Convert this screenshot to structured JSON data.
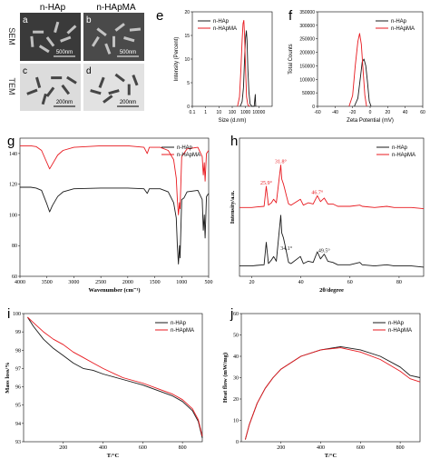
{
  "colors": {
    "hap": "#1a1a1a",
    "hapma": "#e8191f"
  },
  "micro": {
    "col_labels": [
      "n-HAp",
      "n-HApMA"
    ],
    "row_labels": [
      "SEM",
      "TEM"
    ],
    "panels": [
      {
        "letter": "a",
        "scale": "500nm"
      },
      {
        "letter": "b",
        "scale": "500nm"
      },
      {
        "letter": "c",
        "scale": "200nm"
      },
      {
        "letter": "d",
        "scale": "200nm"
      }
    ]
  },
  "chart_data": [
    {
      "panel": "e",
      "type": "line",
      "xlabel": "Size (d.nm)",
      "ylabel": "Intensity (Percent)",
      "xscale": "log",
      "xlim": [
        0.1,
        100000
      ],
      "ylim": [
        0,
        20
      ],
      "xticks": [
        "0.1",
        "1",
        "10",
        "100",
        "1000",
        "10000"
      ],
      "yticks": [
        "0",
        "5",
        "10",
        "15",
        "20"
      ],
      "legend": [
        "n-HAp",
        "n-HApMA"
      ],
      "legend_position": "top-left",
      "series": [
        {
          "name": "n-HAp",
          "x": [
            400,
            550,
            700,
            850,
            1000,
            1150,
            1300,
            1500,
            1800,
            2200,
            3000,
            4500,
            5000,
            5400,
            5800
          ],
          "y": [
            0,
            1,
            4,
            10,
            14.5,
            16,
            14,
            8,
            3,
            0.5,
            0,
            0,
            1.5,
            2.5,
            0
          ]
        },
        {
          "name": "n-HApMA",
          "x": [
            250,
            350,
            450,
            550,
            650,
            750,
            850,
            1000,
            1200,
            1500,
            2000
          ],
          "y": [
            0,
            2,
            8,
            14,
            17.5,
            18.2,
            15,
            8,
            2,
            0.3,
            0
          ]
        }
      ]
    },
    {
      "panel": "f",
      "type": "line",
      "xlabel": "Zeta Potential (mV)",
      "ylabel": "Total Counts",
      "xlim": [
        -60,
        60
      ],
      "ylim": [
        0,
        350000
      ],
      "xticks": [
        "-60",
        "-40",
        "-20",
        "0",
        "20",
        "40",
        "60"
      ],
      "yticks": [
        "0",
        "50000",
        "100000",
        "150000",
        "200000",
        "250000",
        "300000",
        "350000"
      ],
      "legend": [
        "n-HAp",
        "n-HApMA"
      ],
      "legend_position": "top-right",
      "series": [
        {
          "name": "n-HAp",
          "x": [
            -18,
            -14,
            -11,
            -9,
            -7,
            -5,
            -3,
            -1,
            1
          ],
          "y": [
            0,
            30000,
            110000,
            165000,
            175000,
            150000,
            90000,
            20000,
            0
          ]
        },
        {
          "name": "n-HApMA",
          "x": [
            -24,
            -20,
            -17,
            -14,
            -12,
            -10,
            -8,
            -6,
            -4
          ],
          "y": [
            0,
            40000,
            150000,
            240000,
            270000,
            230000,
            130000,
            40000,
            0
          ]
        }
      ]
    },
    {
      "panel": "g",
      "type": "line",
      "xlabel": "Wavenumber (cm⁻¹)",
      "xlim": [
        4000,
        500
      ],
      "ylim": [
        60,
        150
      ],
      "xticks": [
        "4000",
        "3500",
        "3000",
        "2500",
        "2000",
        "1500",
        "1000",
        "500"
      ],
      "yticks": [
        "60",
        "80",
        "100",
        "120",
        "140"
      ],
      "legend": [
        "n-HAp",
        "n-HApMA"
      ],
      "legend_position": "top-right",
      "series": [
        {
          "name": "n-HAp",
          "x": [
            4000,
            3800,
            3700,
            3600,
            3500,
            3450,
            3400,
            3300,
            3200,
            3000,
            2500,
            2000,
            1700,
            1640,
            1600,
            1400,
            1250,
            1150,
            1100,
            1080,
            1060,
            1040,
            1030,
            1000,
            960,
            900,
            700,
            620,
            600,
            580,
            565,
            540,
            500
          ],
          "y": [
            118,
            118,
            117.5,
            116,
            107,
            102,
            106,
            112,
            115,
            117,
            117.5,
            117.5,
            117,
            114,
            117,
            117,
            115,
            108,
            98,
            80,
            68,
            80,
            72,
            110,
            111,
            115,
            116,
            110,
            90,
            100,
            85,
            112,
            114
          ]
        },
        {
          "name": "n-HApMA",
          "x": [
            4000,
            3800,
            3700,
            3600,
            3500,
            3450,
            3400,
            3300,
            3200,
            3000,
            2500,
            2000,
            1700,
            1640,
            1600,
            1400,
            1250,
            1150,
            1100,
            1080,
            1060,
            1040,
            1030,
            1000,
            960,
            900,
            700,
            620,
            600,
            580,
            565,
            540,
            500
          ],
          "y": [
            145,
            145,
            144.5,
            142,
            134,
            130,
            133,
            139,
            142,
            144,
            145,
            145,
            144,
            140,
            144,
            144,
            142,
            136,
            124,
            110,
            100,
            108,
            104,
            138,
            140,
            143,
            144,
            138,
            126,
            134,
            122,
            140,
            142
          ]
        }
      ]
    },
    {
      "panel": "h",
      "type": "line",
      "xlabel": "2θ/degree",
      "ylabel": "Intensity/a.u.",
      "xlim": [
        15,
        90
      ],
      "xticks": [
        "20",
        "40",
        "60",
        "80"
      ],
      "legend": [
        "n-HAp",
        "n-HApMA"
      ],
      "legend_position": "top-right",
      "annotations": [
        {
          "text": "25.9°",
          "x": 25.9,
          "series": "n-HApMA"
        },
        {
          "text": "31.8°",
          "x": 31.8,
          "series": "n-HApMA"
        },
        {
          "text": "46.7°",
          "x": 46.7,
          "series": "n-HApMA"
        },
        {
          "text": "34.1°",
          "x": 34.1,
          "series": "n-HAp"
        },
        {
          "text": "49.5°",
          "x": 49.5,
          "series": "n-HAp"
        }
      ],
      "series": [
        {
          "name": "n-HAp",
          "x": [
            15,
            20,
            22,
            25,
            25.9,
            26.8,
            28,
            28.9,
            30,
            31.8,
            32.2,
            32.9,
            33.5,
            34.1,
            35,
            36,
            39.8,
            41,
            43,
            45,
            46.7,
            48,
            49.5,
            51,
            53,
            55,
            60,
            64,
            65,
            70,
            75,
            78,
            80,
            85,
            90
          ],
          "y": [
            2,
            2,
            2.5,
            3,
            22,
            4,
            7,
            10,
            6,
            45,
            30,
            26,
            20,
            14,
            5,
            4,
            10,
            4,
            6,
            5,
            14,
            8,
            12,
            6,
            5,
            3,
            3,
            5,
            3,
            2,
            3,
            2,
            2,
            2,
            1
          ]
        },
        {
          "name": "n-HApMA",
          "x": [
            15,
            20,
            22,
            25,
            25.9,
            26.8,
            28,
            28.9,
            30,
            31.8,
            32.2,
            32.9,
            33.5,
            34.1,
            35,
            36,
            39.8,
            41,
            43,
            45,
            46.7,
            48,
            49.5,
            51,
            53,
            55,
            60,
            64,
            65,
            70,
            75,
            78,
            80,
            85,
            90
          ],
          "y": [
            2,
            2,
            2.5,
            3,
            20,
            4,
            6,
            9,
            6,
            38,
            26,
            22,
            17,
            12,
            5,
            4,
            9,
            4,
            6,
            5,
            12,
            7,
            10,
            5,
            5,
            3,
            3,
            4,
            3,
            2,
            3,
            2,
            2,
            2,
            1
          ]
        }
      ]
    },
    {
      "panel": "i",
      "type": "line",
      "xlabel": "T/°C",
      "ylabel": "Mass loss/%",
      "xlim": [
        0,
        900
      ],
      "ylim": [
        93,
        100
      ],
      "xticks": [
        "200",
        "400",
        "600",
        "800"
      ],
      "yticks": [
        "93",
        "94",
        "95",
        "96",
        "97",
        "98",
        "99",
        "100"
      ],
      "legend": [
        "n-HAp",
        "n-HApMA"
      ],
      "legend_position": "top-right",
      "series": [
        {
          "name": "n-HAp",
          "x": [
            20,
            50,
            100,
            150,
            200,
            250,
            300,
            350,
            400,
            500,
            600,
            700,
            750,
            800,
            850,
            880,
            900
          ],
          "y": [
            99.8,
            99.3,
            98.6,
            98.1,
            97.7,
            97.3,
            97.0,
            96.9,
            96.7,
            96.4,
            96.1,
            95.7,
            95.5,
            95.2,
            94.7,
            94.1,
            93.2
          ]
        },
        {
          "name": "n-HApMA",
          "x": [
            20,
            50,
            100,
            150,
            200,
            250,
            300,
            350,
            400,
            500,
            600,
            700,
            750,
            800,
            850,
            880,
            900
          ],
          "y": [
            99.8,
            99.5,
            99.0,
            98.6,
            98.3,
            97.9,
            97.6,
            97.3,
            97.0,
            96.5,
            96.2,
            95.8,
            95.6,
            95.3,
            94.8,
            94.2,
            93.3
          ]
        }
      ]
    },
    {
      "panel": "j",
      "type": "line",
      "xlabel": "T/°C",
      "ylabel": "Heat flow (mW/mg)",
      "xlim": [
        0,
        900
      ],
      "ylim": [
        0,
        60
      ],
      "xticks": [
        "200",
        "400",
        "600",
        "800"
      ],
      "yticks": [
        "0",
        "10",
        "20",
        "30",
        "40",
        "50",
        "60"
      ],
      "legend": [
        "n-HAp",
        "n-HApMA"
      ],
      "legend_position": "top-right",
      "series": [
        {
          "name": "n-HAp",
          "x": [
            20,
            40,
            80,
            120,
            160,
            200,
            300,
            400,
            500,
            600,
            700,
            800,
            850,
            900
          ],
          "y": [
            1,
            8,
            18,
            25,
            30,
            34,
            40,
            43,
            44.5,
            43,
            40,
            35,
            31,
            30
          ]
        },
        {
          "name": "n-HApMA",
          "x": [
            20,
            40,
            80,
            120,
            160,
            200,
            300,
            400,
            500,
            600,
            700,
            800,
            850,
            900
          ],
          "y": [
            1,
            8,
            18,
            25,
            30,
            34,
            40,
            43,
            44,
            42,
            38.5,
            33,
            29.5,
            28
          ]
        }
      ]
    }
  ]
}
